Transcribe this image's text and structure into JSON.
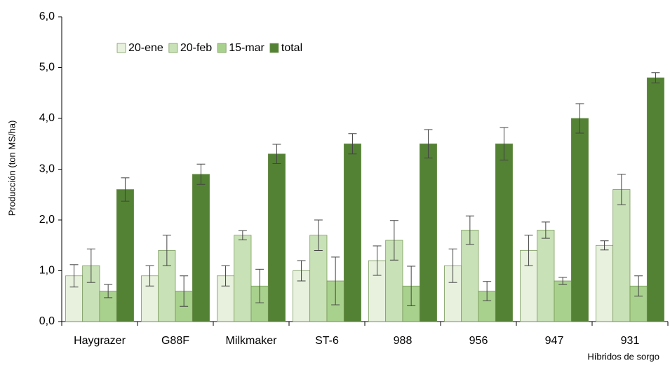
{
  "chart_data": {
    "type": "bar",
    "y_label": "Producción (ton MS/ha)",
    "x_label": "Híbridos de sorgo",
    "categories": [
      "Haygrazer",
      "G88F",
      "Milkmaker",
      "ST-6",
      "988",
      "956",
      "947",
      "931"
    ],
    "series": [
      {
        "name": "20-ene",
        "color": "#e8f1de",
        "values": [
          0.9,
          0.9,
          0.9,
          1.0,
          1.2,
          1.1,
          1.4,
          1.5
        ],
        "errors": [
          0.22,
          0.2,
          0.2,
          0.2,
          0.29,
          0.33,
          0.3,
          0.09
        ]
      },
      {
        "name": "20-feb",
        "color": "#c8e1b6",
        "values": [
          1.1,
          1.4,
          1.7,
          1.7,
          1.6,
          1.8,
          1.8,
          2.6
        ],
        "errors": [
          0.33,
          0.3,
          0.09,
          0.3,
          0.39,
          0.28,
          0.16,
          0.3
        ]
      },
      {
        "name": "15-mar",
        "color": "#a9d18e",
        "values": [
          0.6,
          0.6,
          0.7,
          0.8,
          0.7,
          0.6,
          0.8,
          0.7
        ],
        "errors": [
          0.13,
          0.3,
          0.33,
          0.47,
          0.39,
          0.19,
          0.07,
          0.2
        ]
      },
      {
        "name": "total",
        "color": "#548235",
        "values": [
          2.6,
          2.9,
          3.3,
          3.5,
          3.5,
          3.5,
          4.0,
          4.8
        ],
        "errors": [
          0.23,
          0.2,
          0.19,
          0.2,
          0.28,
          0.32,
          0.29,
          0.1
        ]
      }
    ],
    "ylim": [
      0,
      6
    ],
    "yticks": [
      {
        "value": 0,
        "label": "0,0"
      },
      {
        "value": 1,
        "label": "1,0"
      },
      {
        "value": 2,
        "label": "2,0"
      },
      {
        "value": 3,
        "label": "3,0"
      },
      {
        "value": 4,
        "label": "4,0"
      },
      {
        "value": 5,
        "label": "5,0"
      },
      {
        "value": 6,
        "label": "6,0"
      }
    ],
    "legend": "top-left"
  }
}
